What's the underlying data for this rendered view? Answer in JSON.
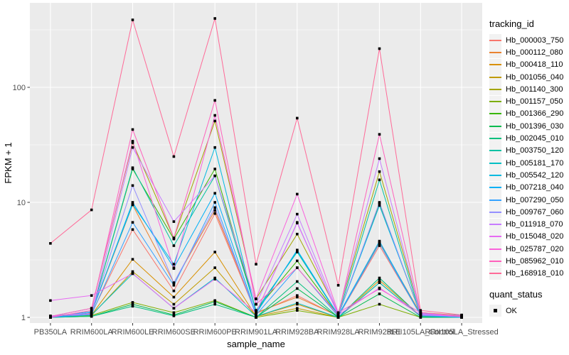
{
  "figure": {
    "background": "#FFFFFF",
    "panel_bg": "#EBEBEB",
    "grid_color": "#FFFFFF",
    "tick_color": "#333333",
    "tick_label_color": "#4D4D4D",
    "axis_title_color": "#000000"
  },
  "chart_data": {
    "type": "line",
    "title": "",
    "xlabel": "sample_name",
    "ylabel": "FPKM + 1",
    "y_scale": "log10",
    "ylim": [
      1,
      450
    ],
    "y_ticks": [
      1,
      10,
      100
    ],
    "y_tick_labels": [
      "1",
      "10",
      "100"
    ],
    "y_minor_ticks": [
      3.162,
      31.62,
      316.2
    ],
    "grid": "on",
    "legend_position": "right",
    "legend_title": "tracking_id",
    "marker": {
      "shape": "square",
      "color": "#000000",
      "size": 3.6
    },
    "categories": [
      "PB350LA",
      "RRIM600LA",
      "RRIM600LE",
      "RRIM600SE",
      "RRIM600PE",
      "RRIM901LA",
      "RRIM928BA",
      "RRIM928LA",
      "RRIM928LE",
      "RRII105LA_Control",
      "RRII105LA_Stressed"
    ],
    "series": [
      {
        "name": "Hb_000003_750",
        "color": "#F8766D",
        "values": [
          1.0,
          1.08,
          5.8,
          1.7,
          8.0,
          1.08,
          1.55,
          1.02,
          4.2,
          1.05,
          1.02
        ]
      },
      {
        "name": "Hb_000112_080",
        "color": "#EA8331",
        "values": [
          1.0,
          1.1,
          9.5,
          2.0,
          8.5,
          1.1,
          1.5,
          1.03,
          4.5,
          1.08,
          1.02
        ]
      },
      {
        "name": "Hb_000418_110",
        "color": "#D89000",
        "values": [
          1.0,
          1.05,
          3.2,
          1.5,
          3.7,
          1.02,
          1.3,
          1.0,
          2.1,
          1.03,
          1.0
        ]
      },
      {
        "name": "Hb_001056_040",
        "color": "#C09B00",
        "values": [
          1.0,
          1.04,
          2.5,
          1.3,
          2.7,
          1.02,
          1.2,
          1.0,
          2.0,
          1.02,
          1.0
        ]
      },
      {
        "name": "Hb_001140_300",
        "color": "#A3A500",
        "values": [
          1.02,
          1.2,
          33,
          4.9,
          51,
          1.45,
          5.3,
          1.1,
          18.5,
          1.1,
          1.04
        ]
      },
      {
        "name": "Hb_001157_050",
        "color": "#7CAE00",
        "values": [
          1.0,
          1.04,
          1.35,
          1.1,
          1.4,
          1.0,
          1.15,
          1.0,
          1.3,
          1.0,
          1.0
        ]
      },
      {
        "name": "Hb_001366_290",
        "color": "#39B600",
        "values": [
          1.0,
          1.1,
          19.5,
          4.8,
          19.5,
          1.15,
          3.1,
          1.04,
          9.8,
          1.05,
          1.02
        ]
      },
      {
        "name": "Hb_001396_030",
        "color": "#00BB4E",
        "values": [
          1.0,
          1.02,
          1.3,
          1.05,
          1.37,
          1.0,
          1.78,
          1.0,
          1.6,
          1.0,
          1.0
        ]
      },
      {
        "name": "Hb_002045_010",
        "color": "#00BF7D",
        "values": [
          1.0,
          1.02,
          1.25,
          1.03,
          1.3,
          1.0,
          2.05,
          1.0,
          2.2,
          1.02,
          1.0
        ]
      },
      {
        "name": "Hb_003750_120",
        "color": "#00C1A3",
        "values": [
          1.0,
          1.1,
          20,
          4.2,
          17,
          1.15,
          3.7,
          1.04,
          15.7,
          1.04,
          1.02
        ]
      },
      {
        "name": "Hb_005181_170",
        "color": "#00BFC4",
        "values": [
          1.0,
          1.05,
          2.4,
          1.2,
          2.2,
          1.02,
          1.33,
          1.0,
          2.0,
          1.02,
          1.0
        ]
      },
      {
        "name": "Hb_005542_120",
        "color": "#00BAE0",
        "values": [
          1.02,
          1.12,
          9.6,
          2.9,
          30,
          1.1,
          3.8,
          1.05,
          9.4,
          1.08,
          1.04
        ]
      },
      {
        "name": "Hb_007218_040",
        "color": "#00B0F6",
        "values": [
          1.0,
          1.1,
          10,
          2.7,
          12,
          1.08,
          3.85,
          1.04,
          4.6,
          1.05,
          1.02
        ]
      },
      {
        "name": "Hb_007290_050",
        "color": "#35A2FF",
        "values": [
          1.0,
          1.06,
          6.7,
          1.9,
          10,
          1.05,
          2.7,
          1.02,
          4.4,
          1.04,
          1.0
        ]
      },
      {
        "name": "Hb_009767_060",
        "color": "#9590FF",
        "values": [
          1.02,
          1.1,
          14,
          2.0,
          9.0,
          1.1,
          6.7,
          1.05,
          10,
          1.06,
          1.03
        ]
      },
      {
        "name": "Hb_011918_070",
        "color": "#C77CFF",
        "values": [
          1.03,
          1.07,
          30,
          6.8,
          17,
          1.3,
          7.9,
          1.08,
          24,
          1.08,
          1.02
        ]
      },
      {
        "name": "Hb_015048_020",
        "color": "#E76BF3",
        "values": [
          1.4,
          1.55,
          2.4,
          1.2,
          2.15,
          1.1,
          6.6,
          1.05,
          1.8,
          1.05,
          1.02
        ]
      },
      {
        "name": "Hb_025787_020",
        "color": "#FA62DB",
        "values": [
          1.02,
          1.2,
          34,
          2.66,
          57,
          1.45,
          11.8,
          1.1,
          1.77,
          1.1,
          1.03
        ]
      },
      {
        "name": "Hb_085962_010",
        "color": "#FF62BC",
        "values": [
          1.0,
          1.15,
          43,
          4.9,
          77,
          1.3,
          2.7,
          1.05,
          39,
          1.1,
          1.02
        ]
      },
      {
        "name": "Hb_168918_010",
        "color": "#FF6A98",
        "values": [
          4.4,
          8.6,
          386,
          25,
          397,
          2.9,
          54,
          1.9,
          217,
          1.15,
          1.05
        ]
      }
    ],
    "quant_legend": {
      "title": "quant_status",
      "items": [
        {
          "label": "OK",
          "marker": "square",
          "color": "#000000"
        }
      ]
    }
  }
}
